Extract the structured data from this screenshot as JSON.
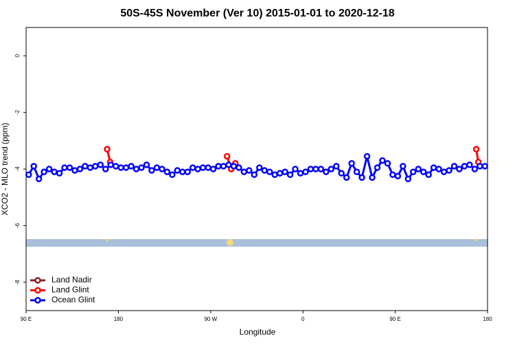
{
  "chart_data": {
    "type": "line",
    "title": "50S-45S November (Ver 10)   2015-01-01 to 2020-12-18",
    "xlabel": "Longitude",
    "ylabel": "XCO2 - MLO trend (ppm)",
    "xlim": [
      90,
      540
    ],
    "ylim": [
      -9,
      1
    ],
    "xticks": [
      {
        "value": 90,
        "label": "90 E"
      },
      180,
      {
        "value": 270,
        "label": "90 W"
      },
      {
        "value": 360,
        "label": "0"
      },
      {
        "value": 450,
        "label": "90 E"
      },
      {
        "value": 540,
        "label": "180"
      }
    ],
    "yticks": [
      0,
      -2,
      -4,
      -6,
      -8
    ],
    "legend": "bottom-left",
    "series": [
      {
        "name": "Land Nadir",
        "color": "#8b2323",
        "x": [],
        "values": []
      },
      {
        "name": "Land Glint",
        "color": "#ff0000",
        "x": [
          169,
          172,
          null,
          286,
          290,
          294,
          null,
          529,
          531
        ],
        "values": [
          -3.3,
          -3.75,
          null,
          -3.55,
          -4.0,
          -3.8,
          null,
          -3.3,
          -3.75
        ]
      },
      {
        "name": "Ocean Glint",
        "color": "#0000ff",
        "x": [
          92.5,
          97.5,
          102.5,
          107.5,
          112.5,
          117.5,
          122.5,
          127.5,
          132.5,
          137.5,
          142.5,
          147.5,
          152.5,
          157.5,
          162.5,
          167.5,
          172.5,
          177.5,
          182.5,
          187.5,
          192.5,
          197.5,
          202.5,
          207.5,
          212.5,
          217.5,
          222.5,
          227.5,
          232.5,
          237.5,
          242.5,
          247.5,
          252.5,
          257.5,
          262.5,
          267.5,
          272.5,
          277.5,
          282.5,
          287.5,
          292.5,
          297.5,
          302.5,
          307.5,
          312.5,
          317.5,
          322.5,
          327.5,
          332.5,
          337.5,
          342.5,
          347.5,
          352.5,
          357.5,
          362.5,
          367.5,
          372.5,
          377.5,
          382.5,
          387.5,
          392.5,
          397.5,
          402.5,
          407.5,
          412.5,
          417.5,
          422.5,
          427.5,
          432.5,
          437.5,
          442.5,
          447.5,
          452.5,
          457.5,
          462.5,
          467.5,
          472.5,
          477.5,
          482.5,
          487.5,
          492.5,
          497.5,
          502.5,
          507.5,
          512.5,
          517.5,
          522.5,
          527.5,
          532.5,
          537.5
        ],
        "values": [
          -4.2,
          -3.9,
          -4.35,
          -4.1,
          -4.0,
          -4.1,
          -4.15,
          -3.95,
          -3.95,
          -4.05,
          -4.0,
          -3.9,
          -3.95,
          -3.9,
          -3.85,
          -4.0,
          -3.85,
          -3.9,
          -3.95,
          -3.95,
          -3.9,
          -4.0,
          -3.95,
          -3.85,
          -4.05,
          -3.95,
          -4.0,
          -4.1,
          -4.2,
          -4.05,
          -4.1,
          -4.1,
          -3.95,
          -4.0,
          -3.95,
          -3.95,
          -4.0,
          -3.9,
          -3.9,
          -3.85,
          -3.9,
          -3.95,
          -4.1,
          -4.05,
          -4.2,
          -3.95,
          -4.05,
          -4.1,
          -4.2,
          -4.15,
          -4.1,
          -4.2,
          -4.0,
          -4.15,
          -4.1,
          -4.0,
          -4.0,
          -4.0,
          -4.1,
          -4.0,
          -3.9,
          -4.15,
          -4.3,
          -3.8,
          -4.1,
          -4.3,
          -3.55,
          -4.3,
          -3.95,
          -3.7,
          -3.8,
          -4.2,
          -4.25,
          -3.9,
          -4.35,
          -4.1,
          -4.0,
          -4.1,
          -4.2,
          -3.95,
          -4.0,
          -4.1,
          -4.05,
          -3.9,
          -4.0,
          -3.9,
          -3.85,
          -4.0,
          -3.9,
          -3.9
        ]
      }
    ]
  }
}
